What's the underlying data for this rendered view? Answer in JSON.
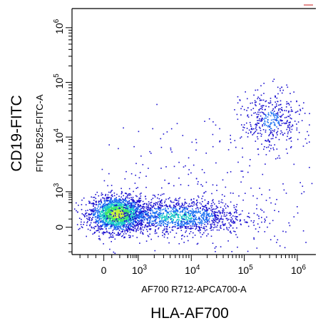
{
  "chart_data": {
    "type": "scatter",
    "title": "",
    "xlabel": "HLA-AF700",
    "x_parameter": "AF700 R712-APCA700-A",
    "ylabel": "CD19-FITC",
    "y_parameter": "FITC B525-FITC-A",
    "x_scale": "biexponential",
    "y_scale": "biexponential",
    "x_ticks": [
      {
        "base": "0",
        "exp": ""
      },
      {
        "base": "10",
        "exp": "3"
      },
      {
        "base": "10",
        "exp": "4"
      },
      {
        "base": "10",
        "exp": "5"
      },
      {
        "base": "10",
        "exp": "6"
      }
    ],
    "y_ticks": [
      {
        "base": "0",
        "exp": ""
      },
      {
        "base": "10",
        "exp": "3"
      },
      {
        "base": "10",
        "exp": "4"
      },
      {
        "base": "10",
        "exp": "5"
      },
      {
        "base": "10",
        "exp": "6"
      }
    ],
    "xlim_decades": [
      -0.6,
      4.0
    ],
    "ylim_decades": [
      -0.5,
      4.0
    ],
    "populations": [
      {
        "x": 0.25,
        "y": 0.25,
        "count": 1900,
        "sx": 0.26,
        "sy": 0.16
      },
      {
        "x": 1.35,
        "y": 0.2,
        "count": 1300,
        "sx": 0.65,
        "sy": 0.16
      },
      {
        "x": 3.15,
        "y": 1.95,
        "count": 420,
        "sx": 0.28,
        "sy": 0.28
      },
      {
        "x": 2.0,
        "y": 0.6,
        "count": 300,
        "sx": 1.2,
        "sy": 0.7
      }
    ],
    "density_colormap": [
      "#1a0fd0",
      "#1a6ff2",
      "#1ac8c8",
      "#3ee66a",
      "#c4f23a"
    ],
    "grid": false,
    "legend": "none"
  }
}
